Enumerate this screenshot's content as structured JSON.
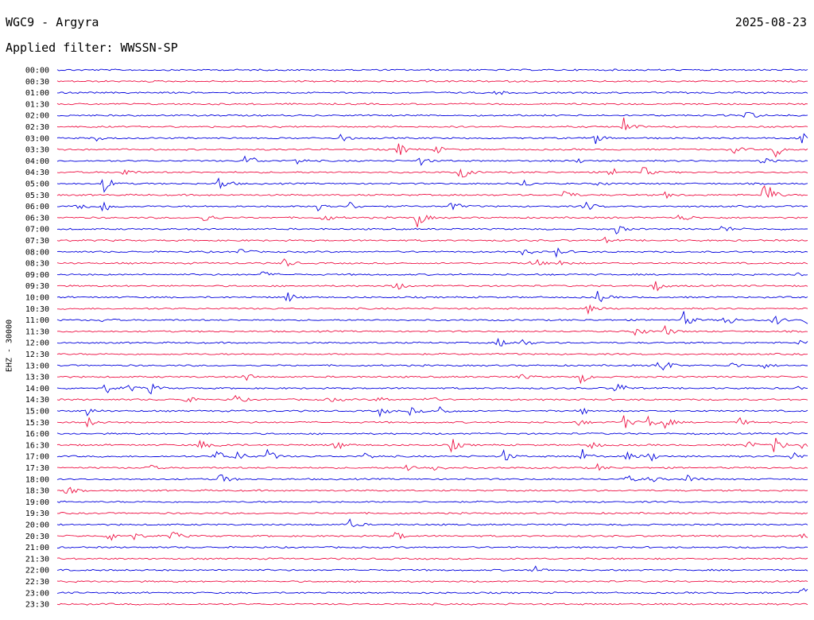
{
  "header": {
    "station": "WGC9 - Argyra",
    "date": "2025-08-23",
    "filter": "Applied filter: WWSSN-SP"
  },
  "colors": {
    "trace_a": "#0000dd",
    "trace_b": "#ee1144",
    "text": "#000000"
  },
  "chart_data": {
    "type": "helicorder",
    "ylabel": "EHZ - 30000",
    "rows": [
      {
        "label": "00:00",
        "events": []
      },
      {
        "label": "00:30",
        "events": []
      },
      {
        "label": "01:00",
        "events": [
          {
            "t": 0.585,
            "a": 3
          }
        ]
      },
      {
        "label": "01:30",
        "events": []
      },
      {
        "label": "02:00",
        "events": [
          {
            "t": 0.918,
            "a": 8
          }
        ]
      },
      {
        "label": "02:30",
        "events": [
          {
            "t": 0.755,
            "a": 12
          }
        ]
      },
      {
        "label": "03:00",
        "events": [
          {
            "t": 0.05,
            "a": 4
          },
          {
            "t": 0.377,
            "a": 6
          },
          {
            "t": 0.717,
            "a": 7
          },
          {
            "t": 0.993,
            "a": 12
          }
        ]
      },
      {
        "label": "03:30",
        "events": [
          {
            "t": 0.0,
            "a": 3
          },
          {
            "t": 0.455,
            "a": 9
          },
          {
            "t": 0.505,
            "a": 5
          },
          {
            "t": 0.902,
            "a": 5
          },
          {
            "t": 0.957,
            "a": 10
          }
        ]
      },
      {
        "label": "04:00",
        "events": [
          {
            "t": 0.252,
            "a": 12
          },
          {
            "t": 0.317,
            "a": 6
          },
          {
            "t": 0.483,
            "a": 6
          },
          {
            "t": 0.695,
            "a": 3
          },
          {
            "t": 0.94,
            "a": 5
          }
        ]
      },
      {
        "label": "04:30",
        "events": [
          {
            "t": 0.087,
            "a": 6
          },
          {
            "t": 0.537,
            "a": 11
          },
          {
            "t": 0.737,
            "a": 8
          },
          {
            "t": 0.78,
            "a": 8
          }
        ]
      },
      {
        "label": "05:00",
        "events": [
          {
            "t": 0.062,
            "a": 12
          },
          {
            "t": 0.216,
            "a": 11
          },
          {
            "t": 0.62,
            "a": 6
          },
          {
            "t": 0.72,
            "a": 4
          }
        ]
      },
      {
        "label": "05:30",
        "events": [
          {
            "t": 0.674,
            "a": 10
          },
          {
            "t": 0.812,
            "a": 5
          },
          {
            "t": 0.942,
            "a": 26
          }
        ]
      },
      {
        "label": "06:00",
        "events": [
          {
            "t": 0.026,
            "a": 10
          },
          {
            "t": 0.062,
            "a": 12
          },
          {
            "t": 0.347,
            "a": 12
          },
          {
            "t": 0.39,
            "a": 6
          },
          {
            "t": 0.525,
            "a": 7
          },
          {
            "t": 0.703,
            "a": 8
          }
        ]
      },
      {
        "label": "06:30",
        "events": [
          {
            "t": 0.195,
            "a": 9
          },
          {
            "t": 0.355,
            "a": 6
          },
          {
            "t": 0.48,
            "a": 12
          },
          {
            "t": 0.83,
            "a": 8
          }
        ]
      },
      {
        "label": "07:00",
        "events": [
          {
            "t": 0.745,
            "a": 6
          },
          {
            "t": 0.887,
            "a": 6
          }
        ]
      },
      {
        "label": "07:30",
        "events": [
          {
            "t": 0.73,
            "a": 3
          }
        ]
      },
      {
        "label": "08:00",
        "events": [
          {
            "t": 0.242,
            "a": 6
          },
          {
            "t": 0.62,
            "a": 5
          },
          {
            "t": 0.665,
            "a": 6
          }
        ]
      },
      {
        "label": "08:30",
        "events": [
          {
            "t": 0.302,
            "a": 7
          },
          {
            "t": 0.633,
            "a": 8
          },
          {
            "t": 0.668,
            "a": 6
          }
        ]
      },
      {
        "label": "09:00",
        "events": [
          {
            "t": 0.274,
            "a": 4
          },
          {
            "t": 0.986,
            "a": 4
          }
        ]
      },
      {
        "label": "09:30",
        "events": [
          {
            "t": 0.45,
            "a": 7
          },
          {
            "t": 0.796,
            "a": 8
          }
        ]
      },
      {
        "label": "10:00",
        "events": [
          {
            "t": 0.307,
            "a": 7
          },
          {
            "t": 0.72,
            "a": 8
          }
        ]
      },
      {
        "label": "10:30",
        "events": [
          {
            "t": 0.708,
            "a": 6
          }
        ]
      },
      {
        "label": "11:00",
        "events": [
          {
            "t": 0.057,
            "a": 3
          },
          {
            "t": 0.835,
            "a": 10
          },
          {
            "t": 0.89,
            "a": 10
          },
          {
            "t": 0.955,
            "a": 8
          },
          {
            "t": 0.998,
            "a": 8
          }
        ]
      },
      {
        "label": "11:30",
        "events": [
          {
            "t": 0.77,
            "a": 10
          },
          {
            "t": 0.81,
            "a": 7
          }
        ]
      },
      {
        "label": "12:00",
        "events": [
          {
            "t": 0.588,
            "a": 7
          },
          {
            "t": 0.62,
            "a": 5
          },
          {
            "t": 0.99,
            "a": 4
          }
        ]
      },
      {
        "label": "12:30",
        "events": []
      },
      {
        "label": "13:00",
        "events": [
          {
            "t": 0.802,
            "a": 18
          },
          {
            "t": 0.9,
            "a": 4
          },
          {
            "t": 0.94,
            "a": 4
          }
        ]
      },
      {
        "label": "13:30",
        "events": [
          {
            "t": 0.25,
            "a": 6
          },
          {
            "t": 0.617,
            "a": 4
          },
          {
            "t": 0.697,
            "a": 9
          }
        ]
      },
      {
        "label": "14:00",
        "events": [
          {
            "t": 0.064,
            "a": 7
          },
          {
            "t": 0.095,
            "a": 5
          },
          {
            "t": 0.124,
            "a": 7
          },
          {
            "t": 0.745,
            "a": 10
          },
          {
            "t": 0.978,
            "a": 4
          }
        ]
      },
      {
        "label": "14:30",
        "events": [
          {
            "t": 0.17,
            "a": 5
          },
          {
            "t": 0.237,
            "a": 6
          },
          {
            "t": 0.363,
            "a": 4
          },
          {
            "t": 0.428,
            "a": 4
          },
          {
            "t": 0.49,
            "a": 7
          }
        ]
      },
      {
        "label": "15:00",
        "events": [
          {
            "t": 0.04,
            "a": 6
          },
          {
            "t": 0.43,
            "a": 6
          },
          {
            "t": 0.47,
            "a": 5
          },
          {
            "t": 0.51,
            "a": 8
          },
          {
            "t": 0.7,
            "a": 4
          }
        ]
      },
      {
        "label": "15:30",
        "events": [
          {
            "t": 0.04,
            "a": 7
          },
          {
            "t": 0.695,
            "a": 4
          },
          {
            "t": 0.755,
            "a": 9
          },
          {
            "t": 0.787,
            "a": 8
          },
          {
            "t": 0.805,
            "a": 13
          },
          {
            "t": 0.908,
            "a": 6
          }
        ]
      },
      {
        "label": "16:00",
        "events": []
      },
      {
        "label": "16:30",
        "events": [
          {
            "t": 0.19,
            "a": 7
          },
          {
            "t": 0.22,
            "a": 4
          },
          {
            "t": 0.37,
            "a": 9
          },
          {
            "t": 0.525,
            "a": 9
          },
          {
            "t": 0.71,
            "a": 6
          },
          {
            "t": 0.92,
            "a": 6
          },
          {
            "t": 0.956,
            "a": 12
          },
          {
            "t": 0.99,
            "a": 4
          }
        ]
      },
      {
        "label": "17:00",
        "events": [
          {
            "t": 0.21,
            "a": 12
          },
          {
            "t": 0.24,
            "a": 8
          },
          {
            "t": 0.28,
            "a": 10
          },
          {
            "t": 0.41,
            "a": 5
          },
          {
            "t": 0.595,
            "a": 8
          },
          {
            "t": 0.7,
            "a": 9
          },
          {
            "t": 0.76,
            "a": 6
          },
          {
            "t": 0.79,
            "a": 7
          },
          {
            "t": 0.98,
            "a": 8
          }
        ]
      },
      {
        "label": "17:30",
        "events": [
          {
            "t": 0.12,
            "a": 5
          },
          {
            "t": 0.465,
            "a": 7
          },
          {
            "t": 0.5,
            "a": 6
          },
          {
            "t": 0.717,
            "a": 6
          }
        ]
      },
      {
        "label": "18:00",
        "events": [
          {
            "t": 0.215,
            "a": 10
          },
          {
            "t": 0.76,
            "a": 5
          },
          {
            "t": 0.79,
            "a": 5
          },
          {
            "t": 0.84,
            "a": 6
          }
        ]
      },
      {
        "label": "18:30",
        "events": [
          {
            "t": 0.012,
            "a": 6
          }
        ]
      },
      {
        "label": "19:00",
        "events": []
      },
      {
        "label": "19:30",
        "events": []
      },
      {
        "label": "20:00",
        "events": [
          {
            "t": 0.39,
            "a": 6
          }
        ]
      },
      {
        "label": "20:30",
        "events": [
          {
            "t": 0.07,
            "a": 8
          },
          {
            "t": 0.1,
            "a": 6
          },
          {
            "t": 0.153,
            "a": 8
          },
          {
            "t": 0.45,
            "a": 7
          },
          {
            "t": 0.993,
            "a": 6
          }
        ]
      },
      {
        "label": "21:00",
        "events": []
      },
      {
        "label": "21:30",
        "events": []
      },
      {
        "label": "22:00",
        "events": [
          {
            "t": 0.632,
            "a": 8
          }
        ]
      },
      {
        "label": "22:30",
        "events": []
      },
      {
        "label": "23:00",
        "events": [
          {
            "t": 0.992,
            "a": 10
          }
        ]
      },
      {
        "label": "23:30",
        "events": []
      }
    ]
  }
}
